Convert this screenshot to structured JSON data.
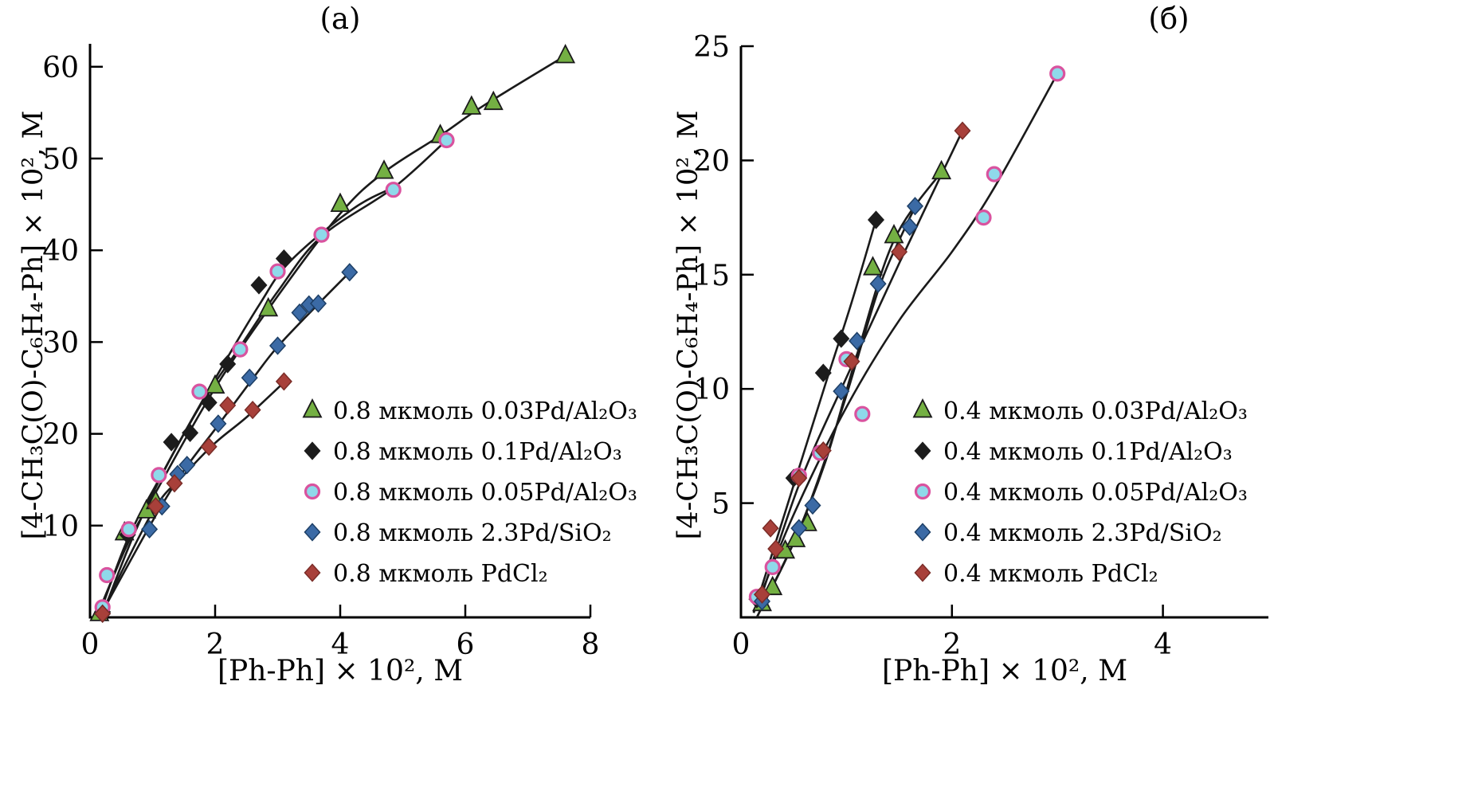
{
  "chart_data": [
    {
      "type": "scatter",
      "title": "(а)",
      "xlabel": "[Ph-Ph] × 10², М",
      "ylabel": "[4-CH₃C(O)-C₆H₄-Ph] × 10², М",
      "xlim": [
        0,
        8
      ],
      "ylim": [
        0,
        62.5
      ],
      "xticks": [
        0,
        2,
        4,
        6,
        8
      ],
      "yticks": [
        10,
        20,
        30,
        40,
        50,
        60
      ],
      "grid": false,
      "legend_position": "inside-lower-right",
      "axis_color": "#000000",
      "line_color": "#1a1a1a",
      "series": [
        {
          "name": "0.8 мкмоль 0.03Pd/Al₂O₃",
          "marker": "triangle-up",
          "color": "#74b043",
          "edge": "#1a1a1a",
          "points": [
            [
              0.15,
              0.4
            ],
            [
              0.55,
              9.2
            ],
            [
              0.9,
              11.6
            ],
            [
              1.05,
              12.6
            ],
            [
              2.0,
              25.2
            ],
            [
              2.85,
              33.6
            ],
            [
              4.0,
              45.0
            ],
            [
              4.7,
              48.6
            ],
            [
              5.6,
              52.5
            ],
            [
              6.1,
              55.6
            ],
            [
              6.45,
              56.1
            ],
            [
              7.6,
              61.2
            ]
          ],
          "curve": [
            [
              0.1,
              0.0
            ],
            [
              0.6,
              8.0
            ],
            [
              1.0,
              13.0
            ],
            [
              2.0,
              25.0
            ],
            [
              3.0,
              35.0
            ],
            [
              4.0,
              44.0
            ],
            [
              4.7,
              48.5
            ],
            [
              5.6,
              52.5
            ],
            [
              6.3,
              55.8
            ],
            [
              7.6,
              61.2
            ]
          ]
        },
        {
          "name": "0.8 мкмоль 0.1Pd/Al₂O₃",
          "marker": "diamond",
          "color": "#1c1c1c",
          "edge": "#1c1c1c",
          "points": [
            [
              0.2,
              0.6
            ],
            [
              0.6,
              9.0
            ],
            [
              1.3,
              19.1
            ],
            [
              1.6,
              20.1
            ],
            [
              1.9,
              23.4
            ],
            [
              2.2,
              27.6
            ],
            [
              2.7,
              36.2
            ],
            [
              3.1,
              39.1
            ]
          ],
          "curve": [
            [
              0.2,
              0.3
            ],
            [
              0.7,
              9.0
            ],
            [
              1.3,
              17.5
            ],
            [
              2.0,
              26.0
            ],
            [
              2.7,
              34.0
            ],
            [
              3.2,
              38.8
            ],
            [
              4.2,
              44.5
            ],
            [
              4.9,
              47.0
            ]
          ]
        },
        {
          "name": "0.8 мкмоль 0.05Pd/Al₂O₃",
          "marker": "circle",
          "color": "#8fd9ea",
          "edge": "#d9539f",
          "points": [
            [
              0.2,
              1.1
            ],
            [
              0.27,
              4.6
            ],
            [
              0.62,
              9.6
            ],
            [
              1.1,
              15.5
            ],
            [
              1.75,
              24.6
            ],
            [
              2.4,
              29.2
            ],
            [
              3.0,
              37.7
            ],
            [
              3.7,
              41.7
            ],
            [
              4.85,
              46.6
            ],
            [
              5.7,
              52.0
            ]
          ],
          "curve": [
            [
              0.15,
              0.3
            ],
            [
              0.6,
              8.5
            ],
            [
              1.1,
              15.0
            ],
            [
              1.8,
              23.5
            ],
            [
              2.4,
              29.5
            ],
            [
              3.0,
              35.5
            ],
            [
              3.7,
              41.5
            ],
            [
              4.85,
              46.8
            ],
            [
              5.7,
              52.0
            ]
          ]
        },
        {
          "name": "0.8 мкмоль 2.3Pd/SiO₂",
          "marker": "diamond",
          "color": "#3b6aa5",
          "edge": "#1d3f66",
          "points": [
            [
              0.2,
              0.4
            ],
            [
              0.95,
              9.6
            ],
            [
              1.15,
              12.1
            ],
            [
              1.4,
              15.6
            ],
            [
              1.55,
              16.6
            ],
            [
              2.05,
              21.1
            ],
            [
              2.55,
              26.1
            ],
            [
              3.0,
              29.6
            ],
            [
              3.35,
              33.2
            ],
            [
              3.5,
              34.1
            ],
            [
              3.65,
              34.2
            ],
            [
              4.15,
              37.6
            ]
          ],
          "curve": [
            [
              0.15,
              0.0
            ],
            [
              1.0,
              10.5
            ],
            [
              1.5,
              16.0
            ],
            [
              2.0,
              20.5
            ],
            [
              2.6,
              26.0
            ],
            [
              3.0,
              29.5
            ],
            [
              3.6,
              33.8
            ],
            [
              4.15,
              37.6
            ]
          ]
        },
        {
          "name": "0.8 мкмоль PdCl₂",
          "marker": "diamond",
          "color": "#a8403a",
          "edge": "#7a2c27",
          "points": [
            [
              0.2,
              0.4
            ],
            [
              1.05,
              12.1
            ],
            [
              1.35,
              14.6
            ],
            [
              1.9,
              18.6
            ],
            [
              2.2,
              23.1
            ],
            [
              2.6,
              22.6
            ],
            [
              3.1,
              25.7
            ]
          ],
          "curve": [
            [
              0.15,
              0.0
            ],
            [
              1.0,
              11.5
            ],
            [
              1.5,
              15.5
            ],
            [
              2.0,
              19.0
            ],
            [
              2.5,
              21.8
            ],
            [
              3.1,
              25.6
            ]
          ]
        }
      ]
    },
    {
      "type": "scatter",
      "title": "(б)",
      "xlabel": "[Ph-Ph] × 10², М",
      "ylabel": "[4-CH₃C(O)-C₆H₄-Ph] × 10², М",
      "xlim": [
        0,
        5
      ],
      "ylim": [
        0,
        25
      ],
      "xticks": [
        0,
        2,
        4
      ],
      "yticks": [
        5,
        10,
        15,
        20,
        25
      ],
      "grid": false,
      "legend_position": "inside-lower-right",
      "axis_color": "#000000",
      "line_color": "#1a1a1a",
      "series": [
        {
          "name": "0.4 мкмоль 0.03Pd/Al₂O₃",
          "marker": "triangle-up",
          "color": "#74b043",
          "edge": "#1a1a1a",
          "points": [
            [
              0.2,
              0.6
            ],
            [
              0.3,
              1.3
            ],
            [
              0.42,
              2.9
            ],
            [
              0.52,
              3.4
            ],
            [
              0.63,
              4.1
            ],
            [
              1.25,
              15.3
            ],
            [
              1.45,
              16.7
            ],
            [
              1.9,
              19.5
            ]
          ],
          "curve": [
            [
              0.15,
              0.0
            ],
            [
              0.5,
              3.3
            ],
            [
              0.8,
              6.8
            ],
            [
              1.1,
              11.5
            ],
            [
              1.45,
              16.5
            ],
            [
              1.9,
              19.5
            ]
          ]
        },
        {
          "name": "0.4 мкмоль 0.1Pd/Al₂O₃",
          "marker": "diamond",
          "color": "#1c1c1c",
          "edge": "#1c1c1c",
          "points": [
            [
              0.15,
              0.8
            ],
            [
              0.5,
              6.1
            ],
            [
              0.78,
              10.7
            ],
            [
              0.95,
              12.2
            ],
            [
              1.28,
              17.4
            ]
          ],
          "curve": [
            [
              0.12,
              0.2
            ],
            [
              0.5,
              5.8
            ],
            [
              0.8,
              10.2
            ],
            [
              1.05,
              13.8
            ],
            [
              1.28,
              17.4
            ]
          ]
        },
        {
          "name": "0.4 мкмоль 0.05Pd/Al₂O₃",
          "marker": "circle",
          "color": "#8fd9ea",
          "edge": "#d9539f",
          "points": [
            [
              0.15,
              0.9
            ],
            [
              0.3,
              2.2
            ],
            [
              0.55,
              6.2
            ],
            [
              0.75,
              7.2
            ],
            [
              1.0,
              11.3
            ],
            [
              1.15,
              8.9
            ],
            [
              2.3,
              17.5
            ],
            [
              2.4,
              19.4
            ],
            [
              3.0,
              23.8
            ]
          ],
          "curve": [
            [
              0.12,
              0.2
            ],
            [
              0.5,
              4.5
            ],
            [
              1.0,
              9.2
            ],
            [
              1.5,
              13.0
            ],
            [
              2.0,
              16.0
            ],
            [
              2.4,
              18.8
            ],
            [
              3.0,
              23.8
            ]
          ]
        },
        {
          "name": "0.4 мкмоль 2.3Pd/SiO₂",
          "marker": "diamond",
          "color": "#3b6aa5",
          "edge": "#1d3f66",
          "points": [
            [
              0.2,
              0.7
            ],
            [
              0.55,
              3.9
            ],
            [
              0.68,
              4.9
            ],
            [
              0.95,
              9.9
            ],
            [
              1.1,
              12.1
            ],
            [
              1.3,
              14.6
            ],
            [
              1.6,
              17.1
            ],
            [
              1.65,
              18.0
            ]
          ],
          "curve": [
            [
              0.15,
              0.0
            ],
            [
              0.55,
              3.8
            ],
            [
              0.95,
              9.0
            ],
            [
              1.3,
              14.3
            ],
            [
              1.55,
              17.0
            ],
            [
              1.68,
              18.2
            ]
          ]
        },
        {
          "name": "0.4 мкмоль PdCl₂",
          "marker": "diamond",
          "color": "#a8403a",
          "edge": "#7a2c27",
          "points": [
            [
              0.2,
              1.0
            ],
            [
              0.28,
              3.9
            ],
            [
              0.33,
              3.0
            ],
            [
              0.55,
              6.1
            ],
            [
              0.78,
              7.3
            ],
            [
              1.05,
              11.2
            ],
            [
              1.5,
              16.0
            ],
            [
              2.1,
              21.3
            ]
          ],
          "curve": [
            [
              0.15,
              0.3
            ],
            [
              0.55,
              5.8
            ],
            [
              1.0,
              10.5
            ],
            [
              1.5,
              15.5
            ],
            [
              2.1,
              21.3
            ]
          ]
        }
      ]
    }
  ]
}
